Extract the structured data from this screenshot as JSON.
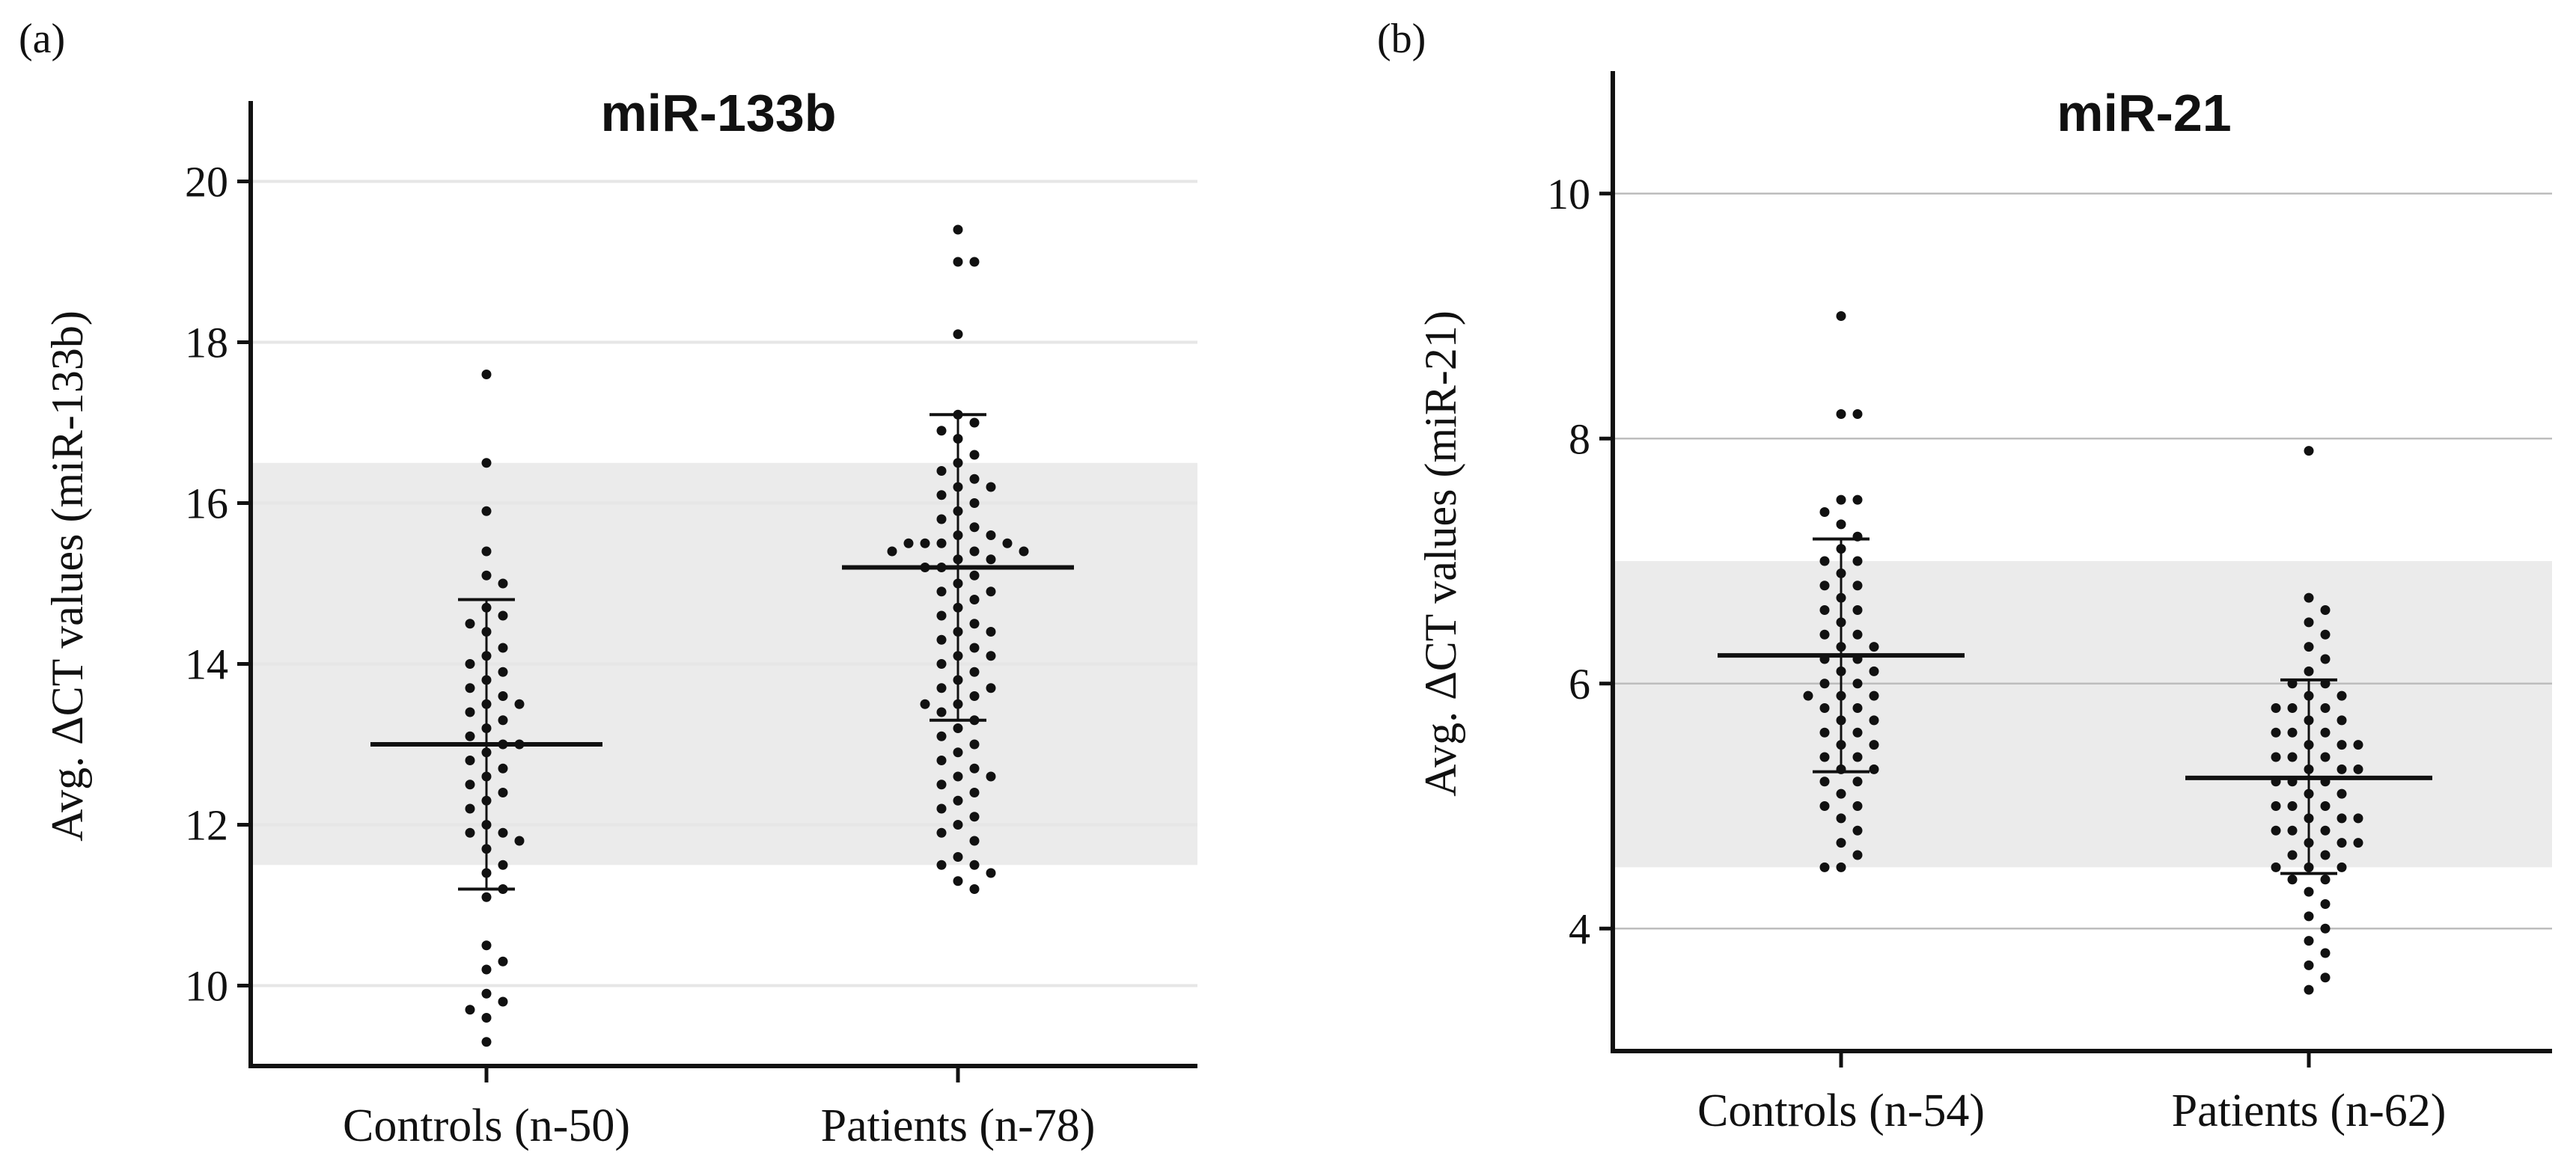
{
  "chart_data": [
    {
      "type": "scatter",
      "panel_label": "(a)",
      "title": "miR-133b",
      "ylabel": "Avg.  ΔCT  values (miR-133b)",
      "xlabel": "",
      "categories": [
        "Controls (n-50)",
        "Patients (n-78)"
      ],
      "ylim": [
        9,
        21
      ],
      "yticks": [
        10,
        12,
        14,
        16,
        18,
        20
      ],
      "grid": true,
      "shaded_band": [
        11.5,
        16.5
      ],
      "series": [
        {
          "values": [
            17.6,
            16.5,
            15.9,
            15.4,
            15.1,
            15.0,
            14.7,
            14.6,
            14.5,
            14.4,
            14.2,
            14.1,
            14.0,
            13.9,
            13.8,
            13.7,
            13.6,
            13.5,
            13.5,
            13.4,
            13.3,
            13.2,
            13.1,
            13.0,
            13.0,
            12.9,
            12.8,
            12.7,
            12.6,
            12.5,
            12.4,
            12.3,
            12.2,
            12.0,
            11.9,
            11.9,
            11.8,
            11.7,
            11.5,
            11.4,
            11.2,
            11.1,
            10.5,
            10.3,
            10.2,
            9.9,
            9.8,
            9.7,
            9.6,
            9.3
          ],
          "mean": 13.0,
          "sd": [
            11.2,
            14.8
          ]
        },
        {
          "values": [
            19.4,
            19.0,
            19.0,
            18.1,
            17.1,
            17.0,
            16.9,
            16.8,
            16.6,
            16.5,
            16.4,
            16.3,
            16.2,
            16.1,
            16.0,
            15.9,
            15.8,
            15.7,
            15.6,
            15.5,
            15.5,
            15.5,
            15.4,
            15.4,
            15.4,
            15.3,
            15.3,
            15.2,
            15.2,
            15.1,
            15.0,
            14.9,
            14.8,
            14.7,
            14.6,
            14.5,
            14.4,
            14.4,
            14.3,
            14.2,
            14.1,
            14.0,
            13.9,
            13.8,
            13.7,
            13.6,
            13.5,
            13.5,
            13.4,
            13.3,
            13.2,
            13.1,
            13.0,
            12.9,
            12.8,
            12.7,
            12.6,
            12.5,
            12.4,
            12.3,
            12.2,
            12.1,
            12.0,
            11.9,
            11.8,
            11.6,
            11.5,
            11.4,
            11.3,
            11.2,
            15.6,
            15.5,
            14.9,
            14.1,
            13.7,
            16.2,
            12.6,
            11.5
          ],
          "mean": 15.2,
          "sd": [
            13.3,
            17.1
          ]
        }
      ]
    },
    {
      "type": "scatter",
      "panel_label": "(b)",
      "title": "miR-21",
      "ylabel": "Avg.  ΔCT  values (miR-21)",
      "xlabel": "",
      "categories": [
        "Controls (n-54)",
        "Patients (n-62)"
      ],
      "ylim": [
        3,
        11
      ],
      "yticks": [
        4,
        6,
        8,
        10
      ],
      "grid": true,
      "shaded_band": [
        4.5,
        7.0
      ],
      "series": [
        {
          "values": [
            9.0,
            8.2,
            8.2,
            7.5,
            7.5,
            7.4,
            7.3,
            7.2,
            7.1,
            7.0,
            7.0,
            6.9,
            6.8,
            6.8,
            6.7,
            6.6,
            6.6,
            6.5,
            6.4,
            6.3,
            6.3,
            6.2,
            6.2,
            6.1,
            6.1,
            6.0,
            6.0,
            5.9,
            5.9,
            5.8,
            5.8,
            5.7,
            5.7,
            5.6,
            5.6,
            5.5,
            5.5,
            5.4,
            5.4,
            5.3,
            5.3,
            5.2,
            5.2,
            5.1,
            5.0,
            5.0,
            4.9,
            4.8,
            4.7,
            4.6,
            4.5,
            4.5,
            6.4,
            5.9
          ],
          "mean": 6.23,
          "sd": [
            5.28,
            7.18
          ]
        },
        {
          "values": [
            7.9,
            6.7,
            6.6,
            6.5,
            6.4,
            6.3,
            6.2,
            6.1,
            6.0,
            5.9,
            5.9,
            5.8,
            5.8,
            5.7,
            5.7,
            5.6,
            5.6,
            5.5,
            5.5,
            5.4,
            5.4,
            5.3,
            5.3,
            5.2,
            5.2,
            5.1,
            5.1,
            5.0,
            5.0,
            4.9,
            4.9,
            4.8,
            4.8,
            4.7,
            4.7,
            4.6,
            4.6,
            4.5,
            4.5,
            4.5,
            4.4,
            4.4,
            4.3,
            4.2,
            4.1,
            4.0,
            3.9,
            3.8,
            3.7,
            3.6,
            3.5,
            5.5,
            5.2,
            5.0,
            4.9,
            5.6,
            5.3,
            4.8,
            4.7,
            6.0,
            5.8,
            5.4
          ],
          "mean": 5.23,
          "sd": [
            4.45,
            6.03
          ]
        }
      ]
    }
  ]
}
